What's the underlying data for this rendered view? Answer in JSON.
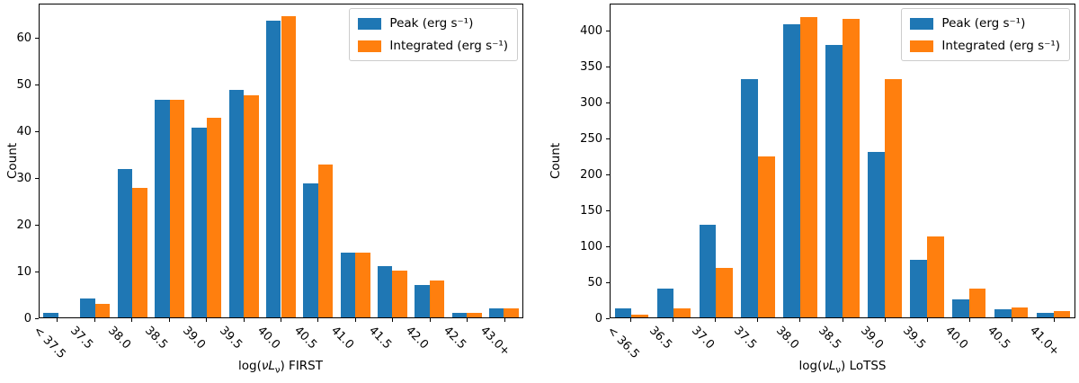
{
  "figure": {
    "background": "#ffffff",
    "accent_blue": "#1f77b4",
    "accent_orange": "#ff7f0e"
  },
  "chart_data": [
    {
      "id": "first",
      "type": "bar",
      "title": "",
      "ylabel": "Count",
      "xlabel": {
        "pre": "log(",
        "var": "νL",
        "sub": "ν",
        "post": ") FIRST"
      },
      "categories": [
        "< 37.5",
        "37.5",
        "38.0",
        "38.5",
        "39.0",
        "39.5",
        "40.0",
        "40.5",
        "41.0",
        "41.5",
        "42.0",
        "42.5",
        "43.0+"
      ],
      "series": [
        {
          "name": "Peak (erg s⁻¹)",
          "color": "#1f77b4",
          "values": [
            1,
            4,
            32,
            47,
            41,
            49,
            64,
            29,
            14,
            11,
            7,
            1,
            2
          ]
        },
        {
          "name": "Integrated (erg s⁻¹)",
          "color": "#ff7f0e",
          "values": [
            0,
            3,
            28,
            47,
            43,
            48,
            65,
            33,
            14,
            10,
            8,
            1,
            2
          ]
        }
      ],
      "ylim": [
        0,
        67.5
      ],
      "yticks": [
        0,
        10,
        20,
        30,
        40,
        50,
        60
      ],
      "legend_position": "upper right",
      "grid": false
    },
    {
      "id": "lotss",
      "type": "bar",
      "title": "",
      "ylabel": "Count",
      "xlabel": {
        "pre": "log(",
        "var": "νL",
        "sub": "ν",
        "post": ") LoTSS"
      },
      "categories": [
        "< 36.5",
        "36.5",
        "37.0",
        "37.5",
        "38.0",
        "38.5",
        "39.0",
        "39.5",
        "40.0",
        "40.5",
        "41.0+"
      ],
      "series": [
        {
          "name": "Peak (erg s⁻¹)",
          "color": "#1f77b4",
          "values": [
            13,
            40,
            130,
            333,
            410,
            381,
            232,
            80,
            25,
            11,
            6
          ]
        },
        {
          "name": "Integrated (erg s⁻¹)",
          "color": "#ff7f0e",
          "values": [
            4,
            13,
            69,
            225,
            421,
            418,
            334,
            113,
            40,
            14,
            9
          ]
        }
      ],
      "ylim": [
        0,
        438
      ],
      "yticks": [
        0,
        50,
        100,
        150,
        200,
        250,
        300,
        350,
        400
      ],
      "legend_position": "upper right",
      "grid": false
    }
  ]
}
